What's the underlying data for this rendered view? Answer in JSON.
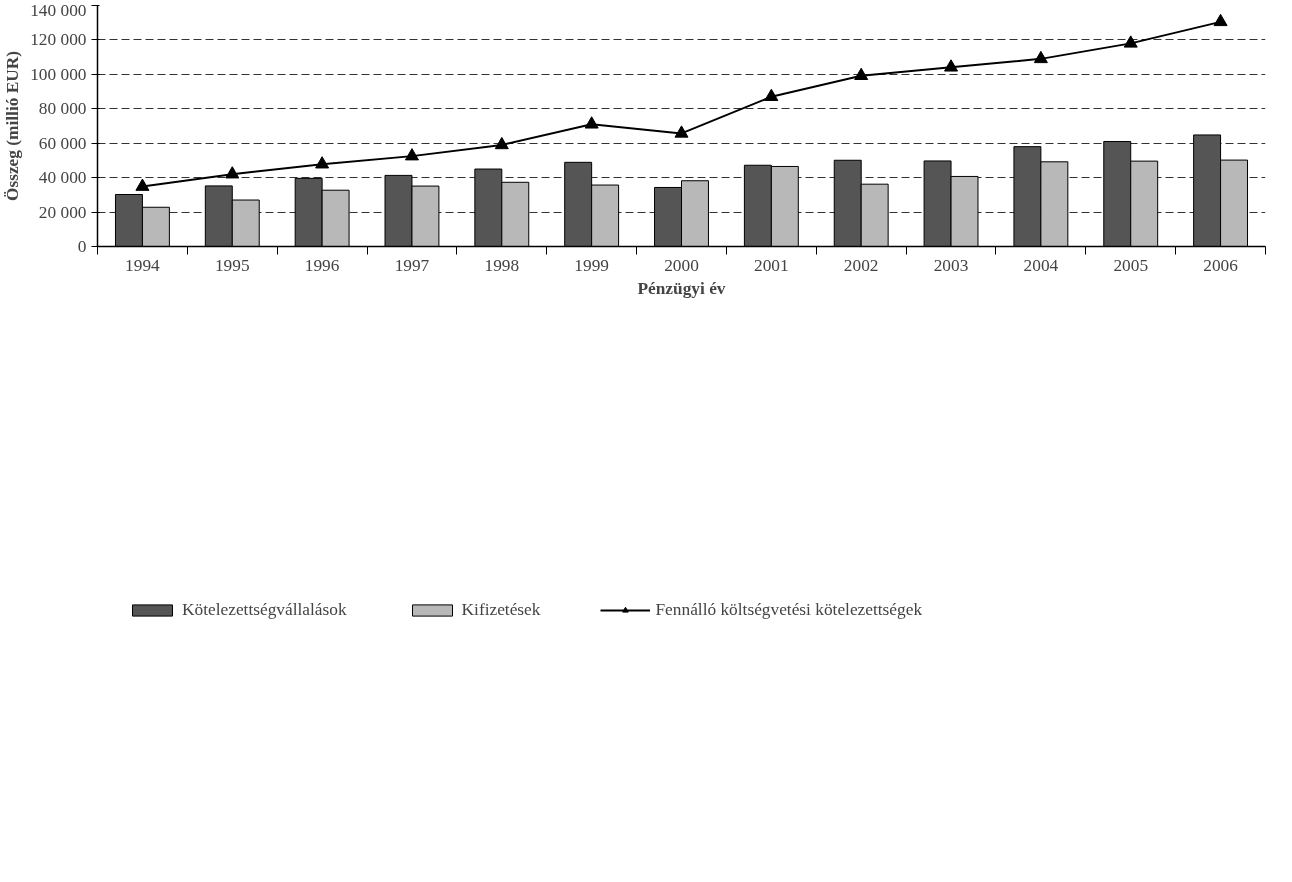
{
  "chart_data": {
    "type": "bar",
    "xlabel": "Pénzügyi év",
    "ylabel": "Összeg (millió EUR)",
    "categories": [
      "1994",
      "1995",
      "1996",
      "1997",
      "1998",
      "1999",
      "2000",
      "2001",
      "2002",
      "2003",
      "2004",
      "2005",
      "2006"
    ],
    "series": [
      {
        "name": "Kötelezettségvállalások",
        "color": "#555555",
        "values": [
          30200,
          35200,
          39600,
          41300,
          45000,
          48900,
          34300,
          47200,
          50100,
          49700,
          58000,
          61000,
          64800
        ]
      },
      {
        "name": "Kifizetések",
        "color": "#b8b8b8",
        "values": [
          22800,
          27000,
          32700,
          35100,
          37300,
          35700,
          38200,
          46500,
          36200,
          40700,
          49200,
          49600,
          50200
        ]
      },
      {
        "name": "Fennálló költségvetési kötelezettségek",
        "type": "line",
        "color": "#000000",
        "marker": "triangle",
        "line_style": "solid",
        "values": [
          34800,
          42000,
          47800,
          52500,
          59000,
          71000,
          65700,
          87000,
          99200,
          104100,
          109000,
          118000,
          130500
        ]
      }
    ],
    "ylim": [
      0,
      140000
    ],
    "yticks": [
      {
        "value": 0,
        "label": "0"
      },
      {
        "value": 20000,
        "label": "20 000"
      },
      {
        "value": 40000,
        "label": "40 000"
      },
      {
        "value": 60000,
        "label": "60 000"
      },
      {
        "value": 80000,
        "label": "80 000"
      },
      {
        "value": 100000,
        "label": "100 000"
      },
      {
        "value": 120000,
        "label": "120 000"
      },
      {
        "value": 140000,
        "label": "140 000"
      }
    ],
    "grid": "y",
    "legend": "bottom"
  }
}
